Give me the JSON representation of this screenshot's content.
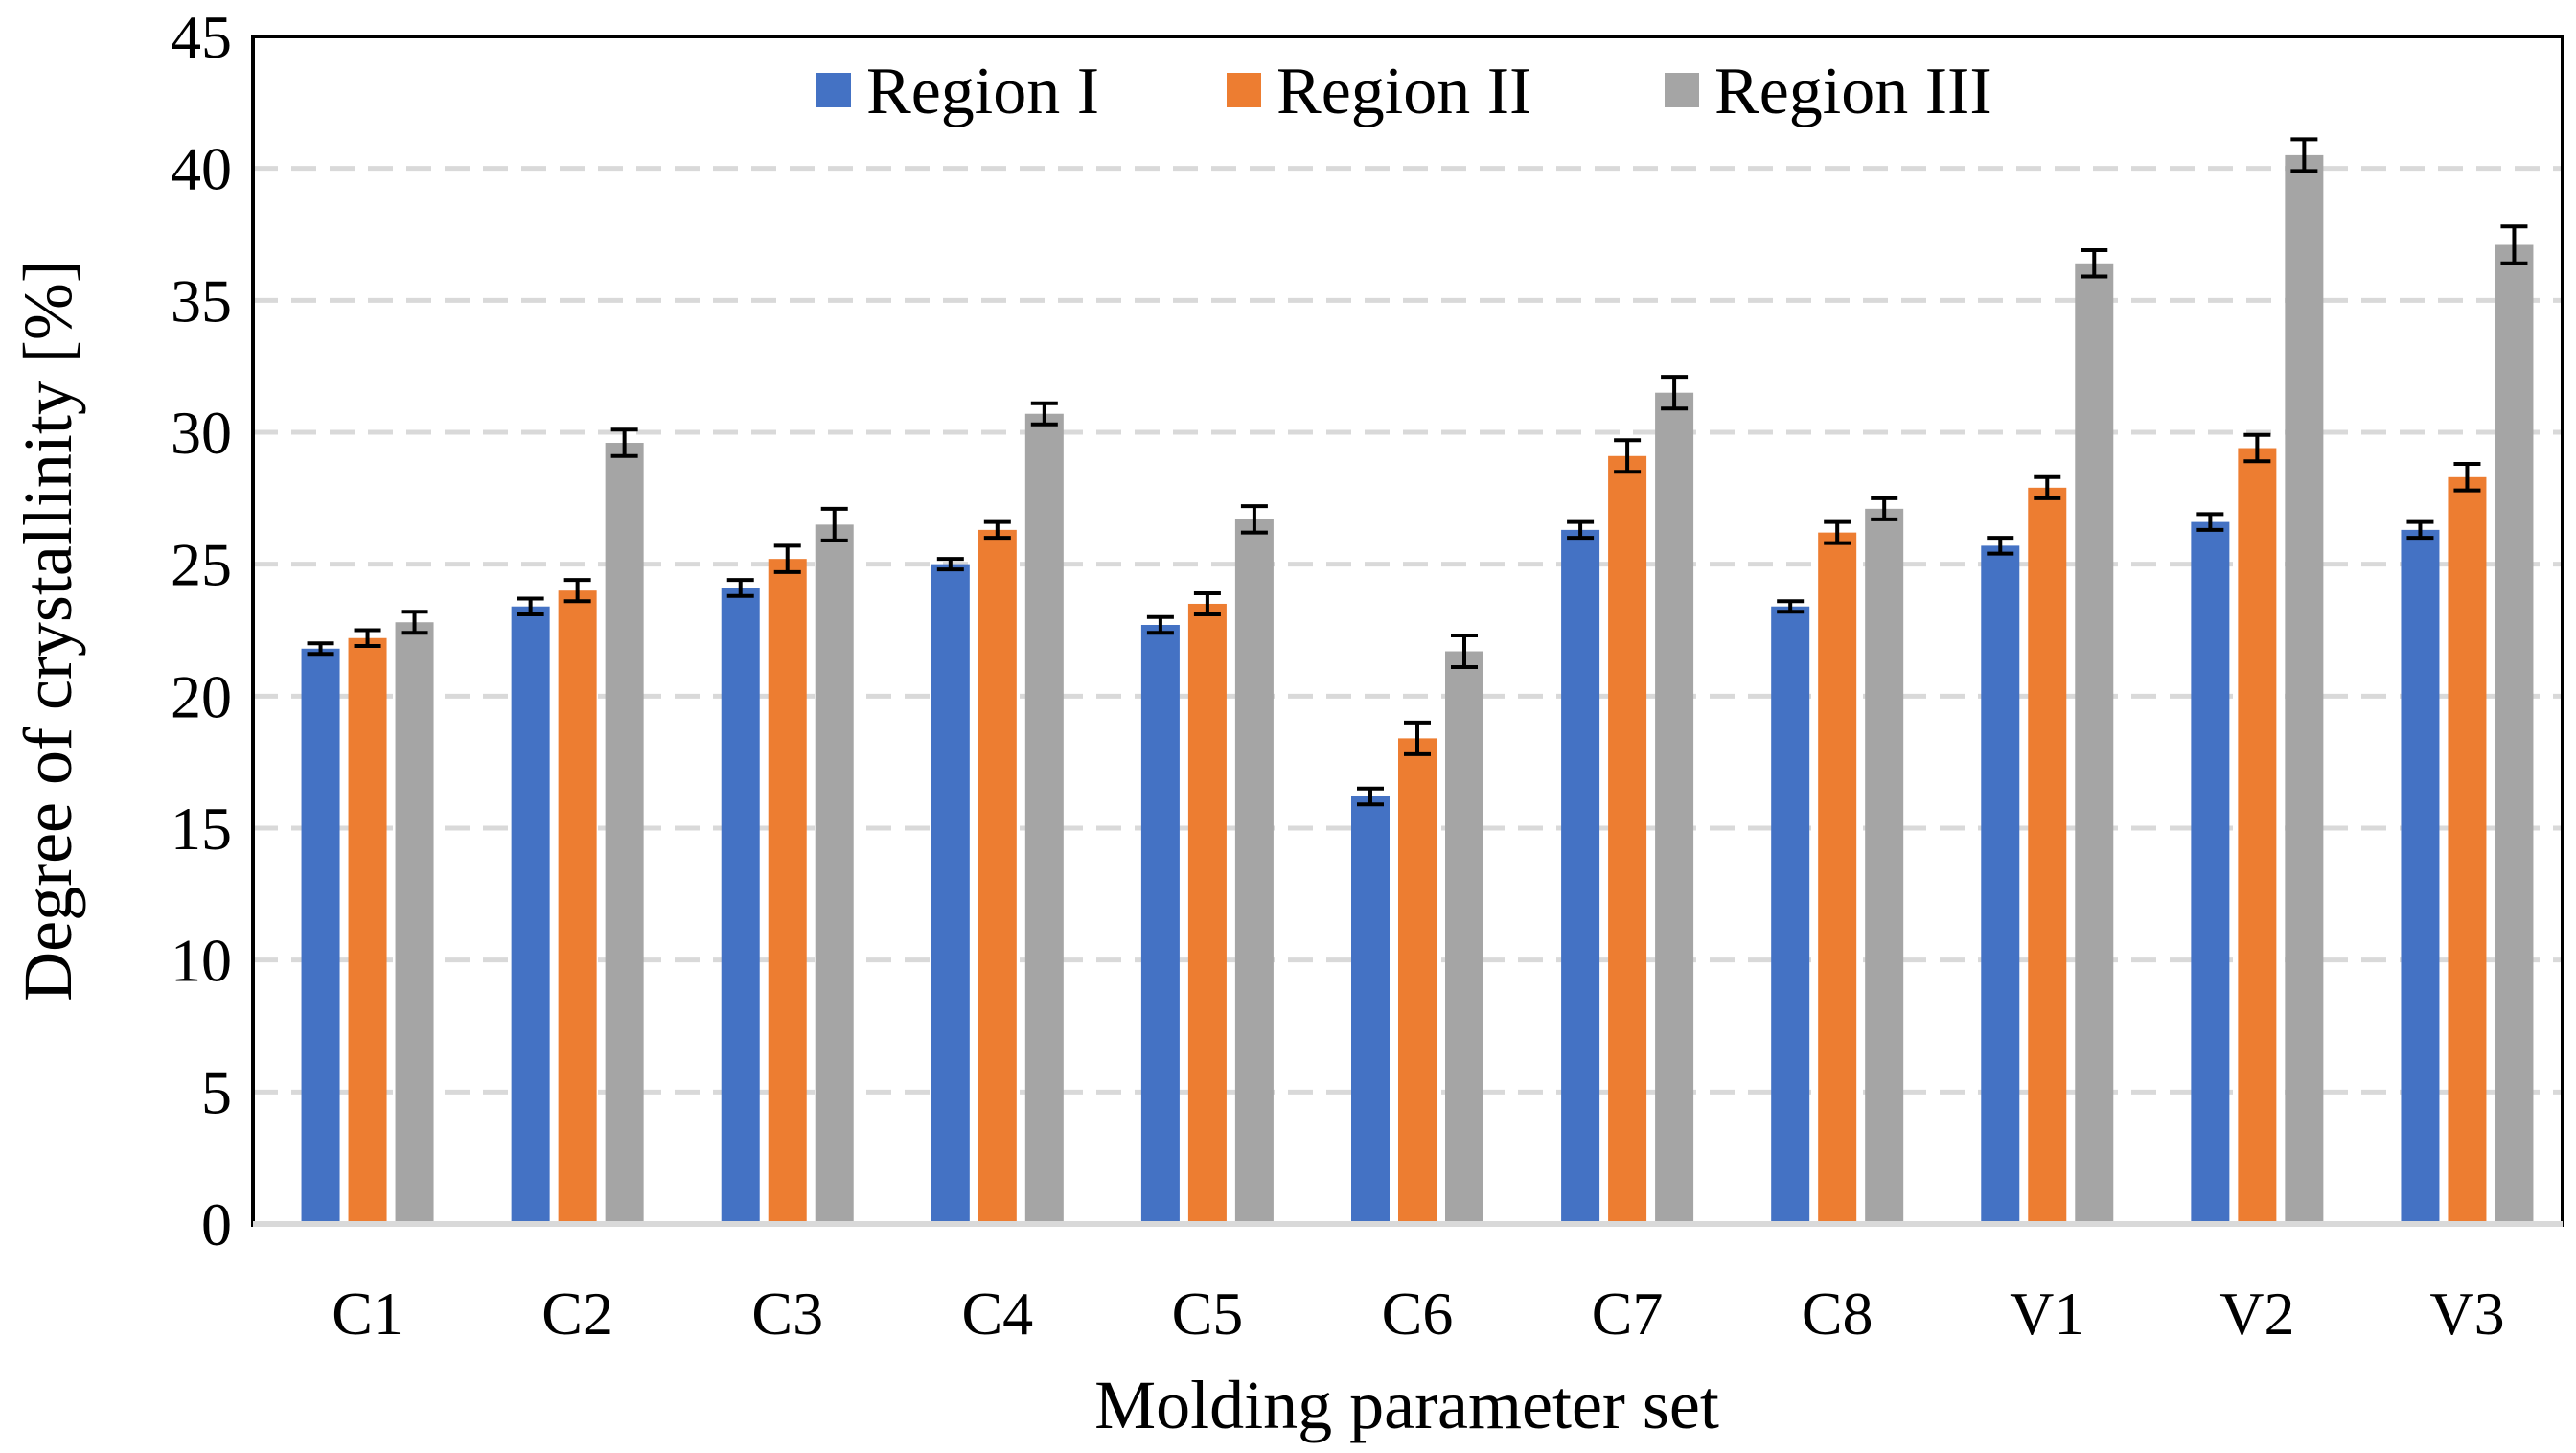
{
  "chart_data": {
    "type": "bar",
    "title": "",
    "xlabel": "Molding parameter set",
    "ylabel": "Degree of crystallinity [%]",
    "ylim": [
      0,
      45
    ],
    "yticks": [
      0,
      5,
      10,
      15,
      20,
      25,
      30,
      35,
      40,
      45
    ],
    "grid": true,
    "legend_position": "top-center",
    "categories": [
      "C1",
      "C2",
      "C3",
      "C4",
      "C5",
      "C6",
      "C7",
      "C8",
      "V1",
      "V2",
      "V3"
    ],
    "series": [
      {
        "name": "Region I",
        "color": "#4472c4",
        "values": [
          21.8,
          23.4,
          24.1,
          25.0,
          22.7,
          16.2,
          26.3,
          23.4,
          25.7,
          26.6,
          26.3
        ],
        "errors": [
          0.2,
          0.3,
          0.3,
          0.2,
          0.3,
          0.3,
          0.3,
          0.2,
          0.3,
          0.3,
          0.3
        ]
      },
      {
        "name": "Region II",
        "color": "#ed7d31",
        "values": [
          22.2,
          24.0,
          25.2,
          26.3,
          23.5,
          18.4,
          29.1,
          26.2,
          27.9,
          29.4,
          28.3
        ],
        "errors": [
          0.3,
          0.4,
          0.5,
          0.3,
          0.4,
          0.6,
          0.6,
          0.4,
          0.4,
          0.5,
          0.5
        ]
      },
      {
        "name": "Region III",
        "color": "#a5a5a5",
        "values": [
          22.8,
          29.6,
          26.5,
          30.7,
          26.7,
          21.7,
          31.5,
          27.1,
          36.4,
          40.5,
          37.1
        ],
        "errors": [
          0.4,
          0.5,
          0.6,
          0.4,
          0.5,
          0.6,
          0.6,
          0.4,
          0.5,
          0.6,
          0.7
        ]
      }
    ]
  }
}
